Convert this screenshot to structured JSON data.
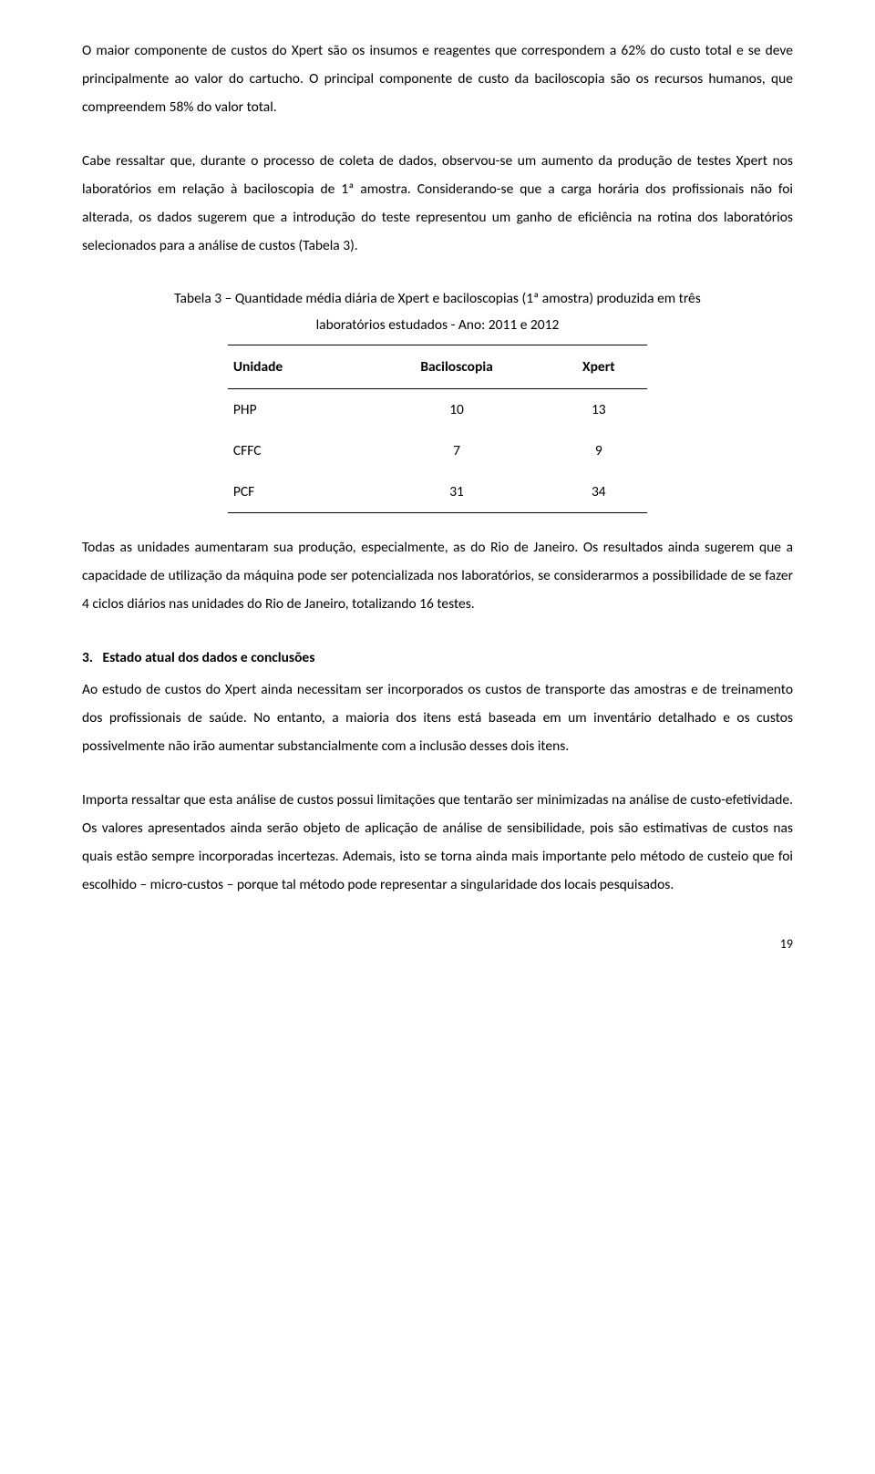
{
  "paragraphs": {
    "p1": "O maior componente de custos do Xpert são os insumos e reagentes que correspondem a 62% do custo total e se deve principalmente ao valor do cartucho. O principal componente de custo da baciloscopia são os recursos humanos, que compreendem 58% do valor total.",
    "p2": "Cabe ressaltar que, durante o processo de coleta de dados, observou-se um aumento da produção de testes Xpert nos laboratórios em relação à baciloscopia de 1ª amostra. Considerando-se que a carga horária dos profissionais não foi alterada, os dados sugerem que a introdução do teste representou um ganho de eficiência na rotina dos laboratórios selecionados para a análise de custos (Tabela 3).",
    "p3": "Todas as unidades aumentaram sua produção, especialmente, as do Rio de Janeiro. Os resultados ainda sugerem que a capacidade de utilização da máquina pode ser potencializada nos laboratórios, se considerarmos a possibilidade de se fazer 4 ciclos diários nas unidades do Rio de Janeiro, totalizando 16 testes.",
    "p4": "Ao estudo de custos do Xpert ainda necessitam ser incorporados os custos de transporte das amostras e de treinamento dos profissionais de saúde. No entanto, a maioria dos itens está baseada em um inventário detalhado e os custos possivelmente não irão aumentar substancialmente com a inclusão desses dois itens.",
    "p5": "Importa ressaltar que esta análise de custos possui limitações que tentarão ser minimizadas na análise de custo-efetividade. Os valores apresentados ainda serão objeto de aplicação de análise de sensibilidade, pois são estimativas de custos nas quais estão sempre incorporadas incertezas. Ademais, isto se torna ainda mais importante pelo método de custeio que foi escolhido – micro-custos – porque tal método pode representar a singularidade dos locais pesquisados."
  },
  "table": {
    "caption_line1": "Tabela 3 – Quantidade média diária de Xpert e baciloscopias (1ª amostra) produzida em três",
    "caption_line2": "laboratórios estudados - Ano: 2011 e 2012",
    "headers": {
      "col1": "Unidade",
      "col2": "Baciloscopia",
      "col3": "Xpert"
    },
    "rows": [
      {
        "unit": "PHP",
        "bacil": "10",
        "xpert": "13"
      },
      {
        "unit": "CFFC",
        "bacil": "7",
        "xpert": "9"
      },
      {
        "unit": "PCF",
        "bacil": "31",
        "xpert": "34"
      }
    ]
  },
  "section": {
    "number": "3.",
    "title": "Estado atual dos dados e conclusões"
  },
  "page_number": "19"
}
